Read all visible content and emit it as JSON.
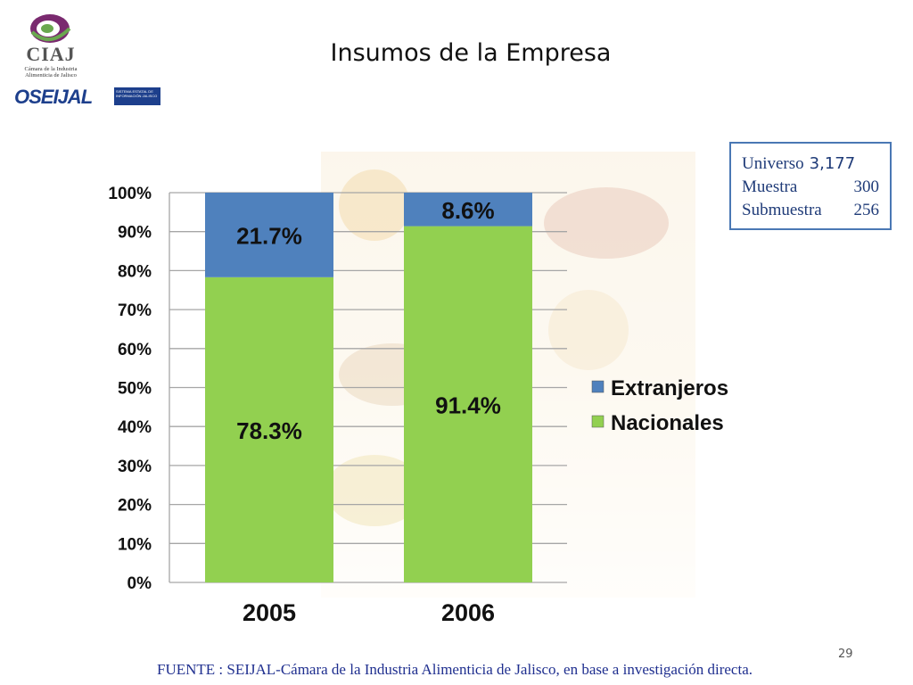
{
  "title": "Insumos de la Empresa",
  "logos": {
    "ciaj_text": "CIAJ",
    "ciaj_subtitle": "Cámara de la Industria Alimenticia de Jalisco",
    "seijal_text": "OSEIJAL",
    "seijal_subtitle": "SISTEMA ESTATAL DE INFORMACIÓN JALISCO"
  },
  "infobox": {
    "rows": [
      {
        "label": "Universo",
        "value": "3,177"
      },
      {
        "label": "Muestra",
        "value": "300"
      },
      {
        "label": "Submuestra",
        "value": "256"
      }
    ],
    "border_color": "#4a78b4"
  },
  "chart_data": {
    "type": "bar",
    "stacked": true,
    "categories": [
      "2005",
      "2006"
    ],
    "series": [
      {
        "name": "Nacionales",
        "values": [
          78.3,
          91.4
        ],
        "labels": [
          "78.3%",
          "91.4%"
        ],
        "color": "#92d050"
      },
      {
        "name": "Extranjeros",
        "values": [
          21.7,
          8.6
        ],
        "labels": [
          "21.7%",
          "8.6%"
        ],
        "color": "#4f81bd"
      }
    ],
    "ylim": [
      0,
      100
    ],
    "yticks": [
      "0%",
      "10%",
      "20%",
      "30%",
      "40%",
      "50%",
      "60%",
      "70%",
      "80%",
      "90%",
      "100%"
    ],
    "grid": true,
    "legend_position": "right",
    "legend_order": [
      "Extranjeros",
      "Nacionales"
    ]
  },
  "source": "FUENTE : SEIJAL-Cámara de la Industria Alimenticia de Jalisco,  en base a investigación directa.",
  "page_number": "29"
}
